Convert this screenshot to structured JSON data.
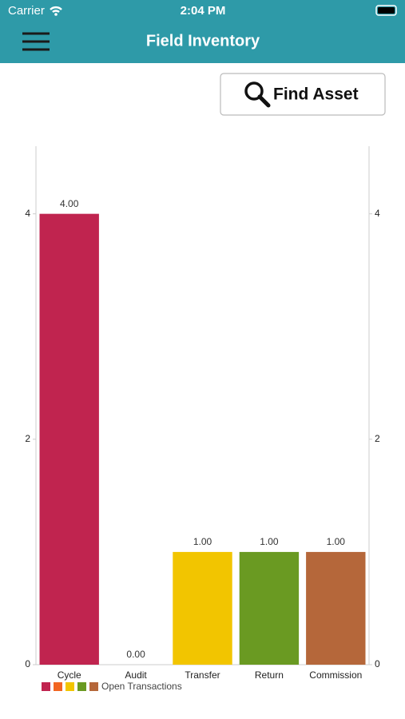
{
  "screen": {
    "carrier": "Carrier",
    "time": "2:04 PM",
    "title": "Field Inventory",
    "button": "Find Asset"
  },
  "chart_data": {
    "type": "bar",
    "categories": [
      "Cycle",
      "Audit",
      "Transfer",
      "Return",
      "Commission"
    ],
    "series": [
      {
        "name": "Open Transactions",
        "colors": [
          "#c0244f",
          "#f26522",
          "#f2c500",
          "#6a9a22",
          "#b5673a"
        ],
        "values": [
          4,
          0,
          1,
          1,
          1
        ],
        "value_labels": [
          "4.00",
          "0.00",
          "1.00",
          "1.00",
          "1.00"
        ]
      }
    ],
    "ylim": [
      0,
      4.6
    ],
    "yticks": [
      0,
      2,
      4
    ],
    "y2lim": [
      0,
      4.6
    ],
    "y2ticks": [
      0,
      2,
      4
    ],
    "legend": "bottom-left"
  }
}
